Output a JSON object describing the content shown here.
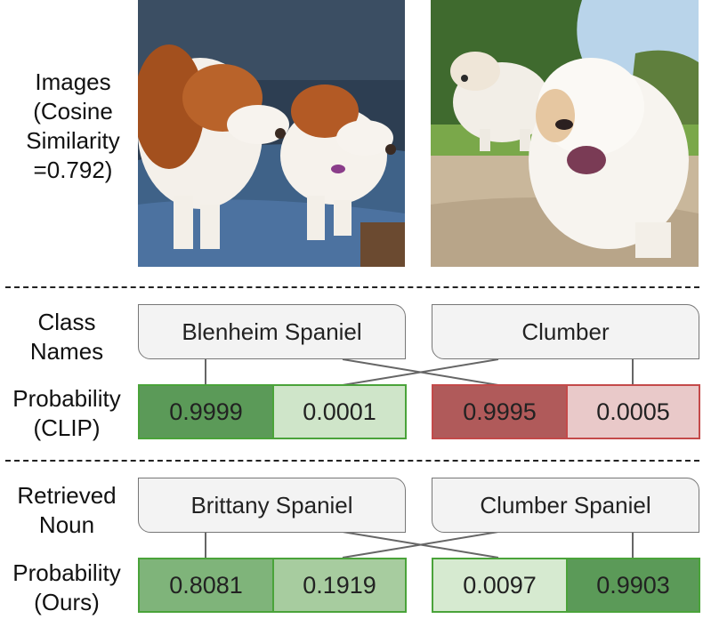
{
  "images_label": [
    "Images",
    "(Cosine",
    "Similarity",
    "=0.792)"
  ],
  "photos": [
    {
      "name": "dog-photo-left",
      "depicts": "two-brittany-spaniels-on-couch"
    },
    {
      "name": "dog-photo-right",
      "depicts": "two-clumber-spaniels-outdoors"
    }
  ],
  "rows": {
    "class_names_label": [
      "Class",
      "Names"
    ],
    "prob_clip_label": [
      "Probability",
      "(CLIP)"
    ],
    "retrieved_label": [
      "Retrieved",
      "Noun"
    ],
    "prob_ours_label": [
      "Probability",
      "(Ours)"
    ]
  },
  "class_names": [
    "Blenheim Spaniel",
    "Clumber"
  ],
  "clip_probs": [
    [
      "0.9999",
      "0.0001"
    ],
    [
      "0.9995",
      "0.0005"
    ]
  ],
  "retrieved_nouns": [
    "Brittany Spaniel",
    "Clumber Spaniel"
  ],
  "ours_probs": [
    [
      "0.8081",
      "0.1919"
    ],
    [
      "0.0097",
      "0.9903"
    ]
  ],
  "colors": {
    "green_dark": "#5b9a58",
    "green_light": "#cfe5c9",
    "green_border": "#4aa33a",
    "red_dark": "#b05a5a",
    "red_light": "#e9c9c9",
    "red_border": "#c44a4a"
  }
}
